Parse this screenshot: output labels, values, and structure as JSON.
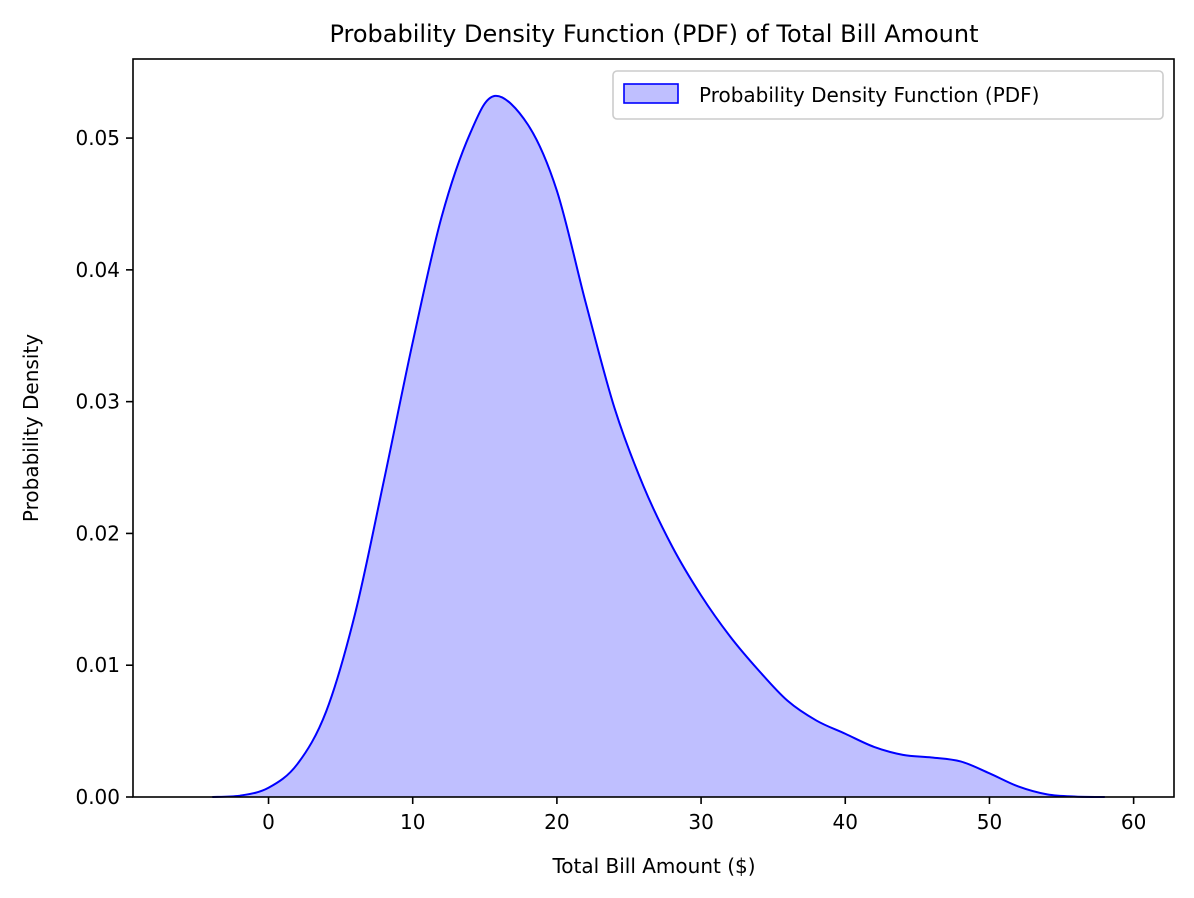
{
  "chart_data": {
    "type": "area",
    "title": "Probability Density Function (PDF) of Total Bill Amount",
    "xlabel": "Total Bill Amount ($)",
    "ylabel": "Probability Density",
    "xlim": [
      -9.4,
      62.8
    ],
    "ylim": [
      0,
      0.056
    ],
    "x_ticks": [
      0,
      10,
      20,
      30,
      40,
      50,
      60
    ],
    "x_tick_labels": [
      "0",
      "10",
      "20",
      "30",
      "40",
      "50",
      "60"
    ],
    "y_ticks": [
      0,
      0.01,
      0.02,
      0.03,
      0.04,
      0.05
    ],
    "y_tick_labels": [
      "0.00",
      "0.01",
      "0.02",
      "0.03",
      "0.04",
      "0.05"
    ],
    "grid": false,
    "legend": {
      "placement": "top-right"
    },
    "series": [
      {
        "name": "Probability Density Function (PDF)",
        "color": "#0000ff",
        "fill_color": "#0000ff",
        "fill_alpha": 0.25,
        "x": [
          -3.9,
          -2,
          0,
          2,
          4,
          6,
          8,
          10,
          12,
          14,
          15.7,
          18,
          20,
          22,
          24,
          26,
          28,
          30,
          32,
          34,
          36,
          38,
          40,
          42,
          44,
          46,
          48,
          50,
          52,
          54,
          56,
          58
        ],
        "y": [
          0.0,
          0.0001,
          0.0007,
          0.0025,
          0.0065,
          0.0139,
          0.024,
          0.0345,
          0.044,
          0.0504,
          0.0532,
          0.051,
          0.046,
          0.0375,
          0.0295,
          0.0236,
          0.019,
          0.0153,
          0.0122,
          0.0096,
          0.0073,
          0.0058,
          0.0048,
          0.0038,
          0.0032,
          0.003,
          0.0027,
          0.0018,
          0.0008,
          0.0002,
          3e-05,
          0.0
        ]
      }
    ]
  }
}
